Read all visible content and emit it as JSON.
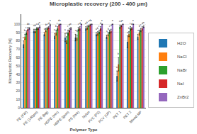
{
  "chart_data": {
    "type": "bar",
    "title": "Microplastic recovery (200 - 400 μm)",
    "x_label": "Polymer Type",
    "y_label": "Microplastic Recovery [%]",
    "categories": [
      "PE (FW)",
      "PE (140μm)",
      "PE (big)",
      "HDPE (mix)",
      "HDPE (gum)",
      "PS (fork)",
      "Nylon",
      "PVC (PS)",
      "PCV (UP)",
      "PET 1",
      "PET 2",
      "Mixed MP"
    ],
    "series": [
      {
        "name": "H2O",
        "annotation": "a",
        "values": [
          76,
          92,
          88,
          86,
          84,
          84,
          95,
          88,
          85,
          38,
          79,
          85
        ],
        "errors": [
          4,
          2,
          2,
          3,
          5,
          4,
          2,
          2,
          2,
          6,
          7,
          3
        ]
      },
      {
        "name": "NaCl",
        "annotation": "b",
        "values": [
          85,
          92,
          93,
          90,
          81,
          84,
          96,
          89,
          88,
          52,
          88,
          90
        ],
        "errors": [
          3,
          2,
          2,
          3,
          4,
          3,
          2,
          2,
          2,
          8,
          3,
          3
        ]
      },
      {
        "name": "NaBr",
        "annotation": "c",
        "values": [
          90,
          95,
          95,
          95,
          90,
          94,
          98,
          91,
          91,
          97,
          95,
          93
        ],
        "errors": [
          2,
          1,
          1,
          2,
          3,
          2,
          1,
          2,
          2,
          2,
          2,
          2
        ]
      },
      {
        "name": "NaI",
        "annotation": "d",
        "values": [
          94,
          95,
          96,
          99,
          93,
          95,
          99,
          95,
          92,
          98,
          95,
          95
        ],
        "errors": [
          2,
          1,
          1,
          1,
          2,
          2,
          1,
          2,
          2,
          1,
          1,
          2
        ]
      },
      {
        "name": "ZnBr2",
        "annotation": "e",
        "values": [
          95,
          97,
          99,
          100,
          95,
          100,
          100,
          100,
          100,
          100,
          100,
          97
        ],
        "errors": [
          1,
          1,
          1,
          0,
          1,
          0,
          0,
          0,
          0,
          0,
          0,
          1
        ]
      }
    ],
    "ylim": [
      0,
      112
    ],
    "yticks": [
      0,
      10,
      20,
      30,
      40,
      50,
      60,
      70,
      80,
      90,
      100
    ],
    "grid": true,
    "legend": "lower right"
  }
}
